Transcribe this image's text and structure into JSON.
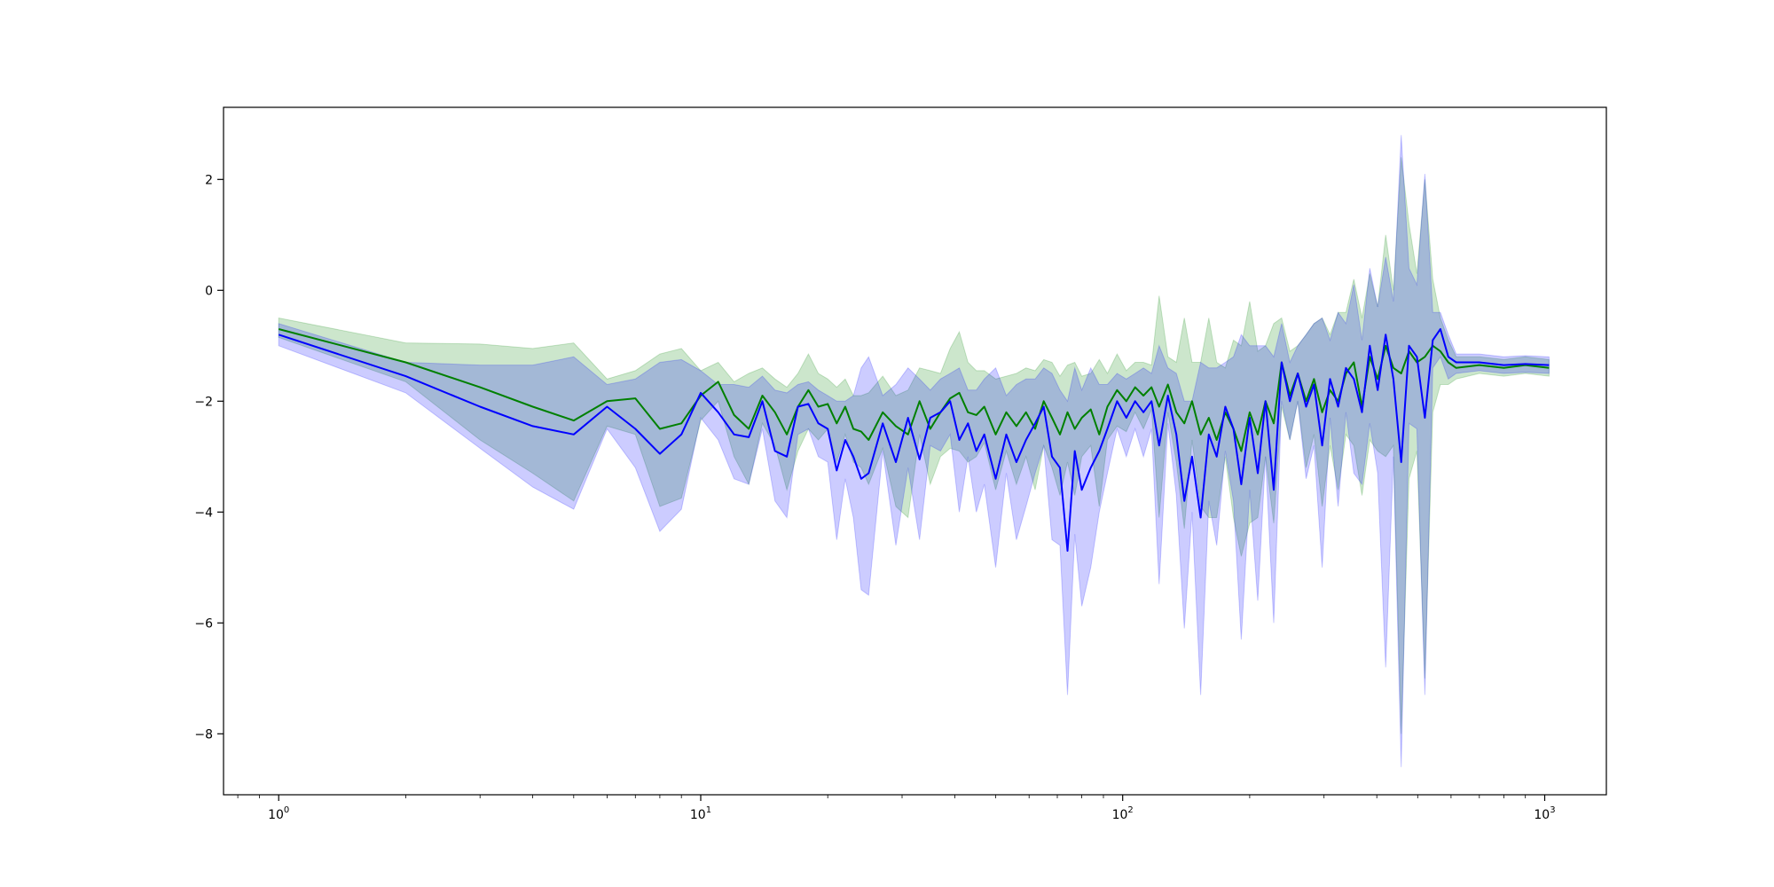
{
  "chart_data": {
    "type": "line",
    "title": "",
    "xlabel": "",
    "ylabel": "",
    "xscale": "log",
    "xlim": [
      0.74,
      1400
    ],
    "ylim": [
      -9.1,
      3.3
    ],
    "grid": false,
    "legend": "none",
    "x_ticks": [
      {
        "value": 1,
        "base": "10",
        "exp": "0"
      },
      {
        "value": 10,
        "base": "10",
        "exp": "1"
      },
      {
        "value": 100,
        "base": "10",
        "exp": "2"
      },
      {
        "value": 1000,
        "base": "10",
        "exp": "3"
      }
    ],
    "y_ticks": [
      {
        "value": 2,
        "label": "2"
      },
      {
        "value": 0,
        "label": "0"
      },
      {
        "value": -2,
        "label": "−2"
      },
      {
        "value": -4,
        "label": "−4"
      },
      {
        "value": -6,
        "label": "−6"
      },
      {
        "value": -8,
        "label": "−8"
      }
    ],
    "series": [
      {
        "color": "#008000",
        "band_color": "#008000",
        "band_opacity": 0.2,
        "points": [
          [
            1,
            -0.7,
            -0.5,
            -0.85
          ],
          [
            2,
            -1.3,
            -0.95,
            -1.65
          ],
          [
            3,
            -1.75,
            -0.97,
            -2.7
          ],
          [
            4,
            -2.1,
            -1.05,
            -3.3
          ],
          [
            5,
            -2.35,
            -0.95,
            -3.8
          ],
          [
            6,
            -2.0,
            -1.6,
            -2.45
          ],
          [
            7,
            -1.95,
            -1.45,
            -2.6
          ],
          [
            8,
            -2.5,
            -1.15,
            -3.9
          ],
          [
            9,
            -2.4,
            -1.05,
            -3.75
          ],
          [
            10,
            -1.9,
            -1.45,
            -2.35
          ],
          [
            11,
            -1.65,
            -1.3,
            -2.0
          ],
          [
            12,
            -2.25,
            -1.65,
            -3.0
          ],
          [
            13,
            -2.5,
            -1.5,
            -3.5
          ],
          [
            14,
            -1.9,
            -1.4,
            -2.4
          ],
          [
            15,
            -2.2,
            -1.6,
            -2.8
          ],
          [
            16,
            -2.6,
            -1.75,
            -3.6
          ],
          [
            17,
            -2.1,
            -1.5,
            -2.9
          ],
          [
            18,
            -1.8,
            -1.15,
            -2.5
          ],
          [
            19,
            -2.1,
            -1.5,
            -2.7
          ],
          [
            20,
            -2.05,
            -1.6,
            -2.5
          ],
          [
            21,
            -2.4,
            -1.75,
            -3.1
          ],
          [
            22,
            -2.1,
            -1.6,
            -2.6
          ],
          [
            23,
            -2.5,
            -1.9,
            -3.1
          ],
          [
            24,
            -2.55,
            -1.9,
            -3.2
          ],
          [
            25,
            -2.7,
            -1.85,
            -3.5
          ],
          [
            27,
            -2.2,
            -1.55,
            -2.85
          ],
          [
            29,
            -2.45,
            -1.9,
            -3.9
          ],
          [
            31,
            -2.6,
            -1.8,
            -4.1
          ],
          [
            33,
            -2.0,
            -1.4,
            -2.6
          ],
          [
            35,
            -2.5,
            -1.45,
            -3.5
          ],
          [
            37,
            -2.2,
            -1.5,
            -3.0
          ],
          [
            39,
            -1.95,
            -1.05,
            -2.85
          ],
          [
            41,
            -1.85,
            -0.75,
            -2.9
          ],
          [
            43,
            -2.2,
            -1.3,
            -3.1
          ],
          [
            45,
            -2.25,
            -1.45,
            -3.0
          ],
          [
            47,
            -2.1,
            -1.45,
            -2.75
          ],
          [
            50,
            -2.6,
            -1.6,
            -3.6
          ],
          [
            53,
            -2.2,
            -1.55,
            -2.9
          ],
          [
            56,
            -2.45,
            -1.5,
            -3.5
          ],
          [
            59,
            -2.2,
            -1.4,
            -3.0
          ],
          [
            62,
            -2.5,
            -1.45,
            -3.6
          ],
          [
            65,
            -2.0,
            -1.25,
            -2.8
          ],
          [
            68,
            -2.3,
            -1.3,
            -3.2
          ],
          [
            71,
            -2.6,
            -1.55,
            -3.7
          ],
          [
            74,
            -2.2,
            -1.35,
            -3.1
          ],
          [
            77,
            -2.5,
            -1.3,
            -3.7
          ],
          [
            80,
            -2.3,
            -1.55,
            -3.0
          ],
          [
            84,
            -2.15,
            -1.5,
            -2.8
          ],
          [
            88,
            -2.6,
            -1.25,
            -3.9
          ],
          [
            92,
            -2.1,
            -1.5,
            -2.7
          ],
          [
            97,
            -1.8,
            -1.15,
            -2.45
          ],
          [
            102,
            -2.0,
            -1.45,
            -2.55
          ],
          [
            107,
            -1.75,
            -1.3,
            -2.2
          ],
          [
            112,
            -1.9,
            -1.3,
            -2.5
          ],
          [
            117,
            -1.75,
            -1.35,
            -2.15
          ],
          [
            122,
            -2.1,
            -0.1,
            -4.1
          ],
          [
            128,
            -1.7,
            -1.2,
            -2.2
          ],
          [
            134,
            -2.2,
            -1.3,
            -3.1
          ],
          [
            140,
            -2.4,
            -0.5,
            -4.3
          ],
          [
            146,
            -2.0,
            -1.3,
            -2.7
          ],
          [
            153,
            -2.6,
            -1.3,
            -3.9
          ],
          [
            160,
            -2.3,
            -0.5,
            -4.1
          ],
          [
            167,
            -2.7,
            -1.3,
            -4.1
          ],
          [
            175,
            -2.2,
            -1.4,
            -3.0
          ],
          [
            183,
            -2.5,
            -0.9,
            -4.1
          ],
          [
            191,
            -2.9,
            -1.0,
            -4.8
          ],
          [
            200,
            -2.2,
            -0.2,
            -4.2
          ],
          [
            209,
            -2.6,
            -1.1,
            -4.1
          ],
          [
            218,
            -2.0,
            -1.0,
            -3.0
          ],
          [
            228,
            -2.4,
            -0.6,
            -4.2
          ],
          [
            238,
            -1.3,
            -0.5,
            -2.1
          ],
          [
            249,
            -1.9,
            -1.1,
            -2.7
          ],
          [
            260,
            -1.5,
            -1.0,
            -2.0
          ],
          [
            272,
            -2.0,
            -0.8,
            -3.2
          ],
          [
            284,
            -1.6,
            -0.6,
            -2.6
          ],
          [
            297,
            -2.2,
            -0.5,
            -3.9
          ],
          [
            310,
            -1.8,
            -0.8,
            -2.8
          ],
          [
            324,
            -2.0,
            -0.4,
            -3.6
          ],
          [
            338,
            -1.5,
            -0.4,
            -2.6
          ],
          [
            353,
            -1.3,
            0.2,
            -2.8
          ],
          [
            369,
            -2.1,
            -0.5,
            -3.7
          ],
          [
            385,
            -1.2,
            0.3,
            -2.7
          ],
          [
            402,
            -1.6,
            -0.3,
            -2.9
          ],
          [
            420,
            -1.0,
            1.0,
            -3.0
          ],
          [
            438,
            -1.4,
            0.0,
            -2.8
          ],
          [
            457,
            -1.5,
            2.4,
            -8.0
          ],
          [
            477,
            -1.1,
            1.2,
            -3.4
          ],
          [
            498,
            -1.3,
            0.3,
            -2.9
          ],
          [
            520,
            -1.2,
            2.0,
            -7.0
          ],
          [
            543,
            -1.0,
            0.2,
            -2.2
          ],
          [
            566,
            -1.1,
            -0.5,
            -1.7
          ],
          [
            591,
            -1.3,
            -0.9,
            -1.7
          ],
          [
            617,
            -1.4,
            -1.2,
            -1.6
          ],
          [
            700,
            -1.35,
            -1.2,
            -1.5
          ],
          [
            800,
            -1.4,
            -1.25,
            -1.55
          ],
          [
            900,
            -1.35,
            -1.2,
            -1.5
          ],
          [
            1024,
            -1.4,
            -1.25,
            -1.55
          ]
        ]
      },
      {
        "color": "#0000ff",
        "band_color": "#0000ff",
        "band_opacity": 0.2,
        "points": [
          [
            1,
            -0.8,
            -0.6,
            -1.0
          ],
          [
            2,
            -1.55,
            -1.3,
            -1.85
          ],
          [
            3,
            -2.1,
            -1.35,
            -2.85
          ],
          [
            4,
            -2.45,
            -1.35,
            -3.55
          ],
          [
            5,
            -2.6,
            -1.2,
            -3.95
          ],
          [
            6,
            -2.1,
            -1.7,
            -2.5
          ],
          [
            7,
            -2.5,
            -1.6,
            -3.2
          ],
          [
            8,
            -2.95,
            -1.3,
            -4.35
          ],
          [
            9,
            -2.6,
            -1.25,
            -3.95
          ],
          [
            10,
            -1.85,
            -1.45,
            -2.3
          ],
          [
            11,
            -2.2,
            -1.7,
            -2.7
          ],
          [
            12,
            -2.6,
            -1.7,
            -3.4
          ],
          [
            13,
            -2.65,
            -1.75,
            -3.5
          ],
          [
            14,
            -2.0,
            -1.55,
            -2.5
          ],
          [
            15,
            -2.9,
            -1.8,
            -3.8
          ],
          [
            16,
            -3.0,
            -1.85,
            -4.1
          ],
          [
            17,
            -2.1,
            -1.7,
            -2.6
          ],
          [
            18,
            -2.05,
            -1.65,
            -2.5
          ],
          [
            19,
            -2.4,
            -1.8,
            -3.0
          ],
          [
            20,
            -2.5,
            -1.9,
            -3.1
          ],
          [
            21,
            -3.25,
            -2.0,
            -4.5
          ],
          [
            22,
            -2.7,
            -2.0,
            -3.4
          ],
          [
            23,
            -3.0,
            -1.9,
            -4.1
          ],
          [
            24,
            -3.4,
            -1.4,
            -5.4
          ],
          [
            25,
            -3.3,
            -1.2,
            -5.5
          ],
          [
            27,
            -2.4,
            -1.9,
            -2.9
          ],
          [
            29,
            -3.1,
            -1.7,
            -4.6
          ],
          [
            31,
            -2.3,
            -1.4,
            -3.2
          ],
          [
            33,
            -3.05,
            -1.6,
            -4.5
          ],
          [
            35,
            -2.3,
            -1.8,
            -2.8
          ],
          [
            37,
            -2.2,
            -1.6,
            -2.9
          ],
          [
            39,
            -2.0,
            -1.5,
            -2.6
          ],
          [
            41,
            -2.7,
            -1.4,
            -4.0
          ],
          [
            43,
            -2.4,
            -1.8,
            -3.0
          ],
          [
            45,
            -2.9,
            -1.8,
            -4.0
          ],
          [
            47,
            -2.6,
            -1.6,
            -3.5
          ],
          [
            50,
            -3.4,
            -1.4,
            -5.0
          ],
          [
            53,
            -2.6,
            -1.9,
            -3.3
          ],
          [
            56,
            -3.1,
            -1.7,
            -4.5
          ],
          [
            59,
            -2.7,
            -1.6,
            -3.9
          ],
          [
            62,
            -2.4,
            -1.6,
            -3.3
          ],
          [
            65,
            -2.1,
            -1.4,
            -2.8
          ],
          [
            68,
            -3.0,
            -1.5,
            -4.5
          ],
          [
            71,
            -3.2,
            -1.8,
            -4.6
          ],
          [
            74,
            -4.7,
            -2.0,
            -7.3
          ],
          [
            77,
            -2.9,
            -1.4,
            -4.4
          ],
          [
            80,
            -3.6,
            -1.8,
            -5.7
          ],
          [
            84,
            -3.2,
            -1.4,
            -5.0
          ],
          [
            88,
            -2.9,
            -1.7,
            -4.0
          ],
          [
            92,
            -2.5,
            -1.7,
            -3.3
          ],
          [
            97,
            -2.0,
            -1.5,
            -2.5
          ],
          [
            102,
            -2.3,
            -1.6,
            -3.0
          ],
          [
            107,
            -2.0,
            -1.5,
            -2.5
          ],
          [
            112,
            -2.2,
            -1.4,
            -3.0
          ],
          [
            117,
            -2.0,
            -1.5,
            -2.5
          ],
          [
            122,
            -2.8,
            -1.0,
            -5.3
          ],
          [
            128,
            -1.9,
            -1.4,
            -2.4
          ],
          [
            134,
            -2.6,
            -1.5,
            -3.7
          ],
          [
            140,
            -3.8,
            -2.0,
            -6.1
          ],
          [
            146,
            -3.0,
            -2.0,
            -4.0
          ],
          [
            153,
            -4.1,
            -1.3,
            -7.3
          ],
          [
            160,
            -2.6,
            -1.4,
            -3.8
          ],
          [
            167,
            -3.0,
            -1.4,
            -4.6
          ],
          [
            175,
            -2.1,
            -1.3,
            -2.9
          ],
          [
            183,
            -2.5,
            -1.2,
            -3.8
          ],
          [
            191,
            -3.5,
            -0.8,
            -6.3
          ],
          [
            200,
            -2.3,
            -1.0,
            -3.6
          ],
          [
            209,
            -3.3,
            -1.0,
            -5.6
          ],
          [
            218,
            -2.0,
            -1.0,
            -3.0
          ],
          [
            228,
            -3.6,
            -1.2,
            -6.0
          ],
          [
            238,
            -1.3,
            -0.6,
            -2.0
          ],
          [
            249,
            -2.0,
            -1.3,
            -2.7
          ],
          [
            260,
            -1.5,
            -1.0,
            -2.0
          ],
          [
            272,
            -2.1,
            -0.8,
            -3.4
          ],
          [
            284,
            -1.7,
            -0.6,
            -2.8
          ],
          [
            297,
            -2.8,
            -0.5,
            -5.0
          ],
          [
            310,
            -1.6,
            -0.9,
            -2.3
          ],
          [
            324,
            -2.1,
            -0.4,
            -3.9
          ],
          [
            338,
            -1.4,
            -0.6,
            -2.2
          ],
          [
            353,
            -1.6,
            0.1,
            -3.3
          ],
          [
            369,
            -2.2,
            -0.9,
            -3.5
          ],
          [
            385,
            -1.0,
            0.4,
            -2.4
          ],
          [
            402,
            -1.8,
            -0.3,
            -3.3
          ],
          [
            420,
            -0.8,
            0.6,
            -6.8
          ],
          [
            438,
            -1.6,
            -0.2,
            -3.0
          ],
          [
            457,
            -3.1,
            2.8,
            -8.6
          ],
          [
            477,
            -1.0,
            0.4,
            -2.4
          ],
          [
            498,
            -1.2,
            0.1,
            -2.5
          ],
          [
            520,
            -2.3,
            2.1,
            -7.3
          ],
          [
            543,
            -0.9,
            -0.4,
            -1.4
          ],
          [
            566,
            -0.7,
            -0.4,
            -1.2
          ],
          [
            591,
            -1.2,
            -0.8,
            -1.6
          ],
          [
            617,
            -1.3,
            -1.15,
            -1.5
          ],
          [
            700,
            -1.3,
            -1.15,
            -1.45
          ],
          [
            800,
            -1.35,
            -1.2,
            -1.5
          ],
          [
            900,
            -1.33,
            -1.18,
            -1.48
          ],
          [
            1024,
            -1.35,
            -1.2,
            -1.5
          ]
        ]
      }
    ]
  }
}
